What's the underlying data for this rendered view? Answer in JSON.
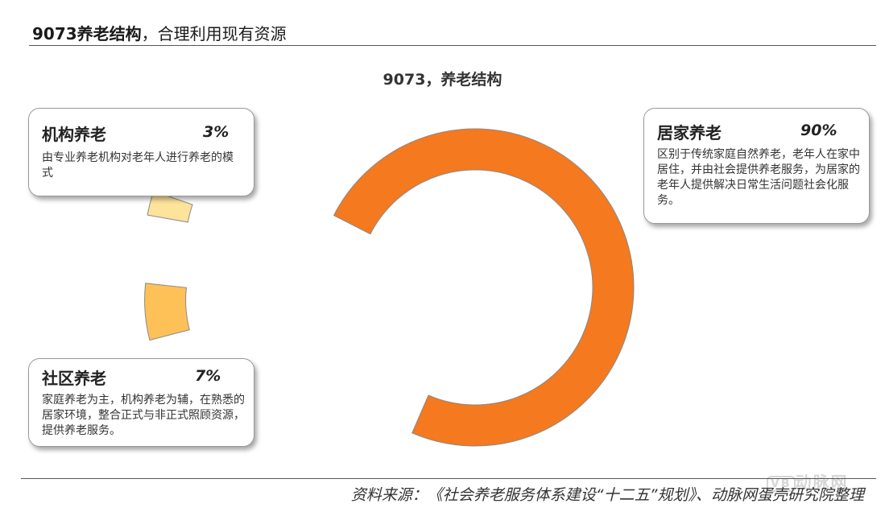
{
  "header": {
    "title_bold": "9073养老结构",
    "title_rest": "，合理利用现有资源"
  },
  "chart_data": {
    "type": "pie",
    "donut": true,
    "exploded": true,
    "title": "9073，养老结构",
    "categories": [
      "居家养老",
      "社区养老",
      "机构养老"
    ],
    "values": [
      90,
      7,
      3
    ],
    "unit": "%",
    "colors": [
      "#f5791e",
      "#fdc158",
      "#fee39a"
    ]
  },
  "callouts": [
    {
      "id": "institution",
      "name": "机构养老",
      "percent": "3%",
      "desc": "由专业养老机构对老年人进行养老的模式"
    },
    {
      "id": "home",
      "name": "居家养老",
      "percent": "90%",
      "desc": "区别于传统家庭自然养老，老年人在家中居住，并由社会提供养老服务，为居家的老年人提供解决日常生活问题社会化服务。"
    },
    {
      "id": "community",
      "name": "社区养老",
      "percent": "7%",
      "desc": "家庭养老为主，机构养老为辅，在熟悉的居家环境，整合正式与非正式照顾资源，提供养老服务。"
    }
  ],
  "footer": {
    "source": "资料来源：《社会养老服务体系建设“十二五”规划》、动脉网蛋壳研究院整理"
  },
  "watermark": {
    "logo": "VB",
    "text": "动脉网"
  }
}
